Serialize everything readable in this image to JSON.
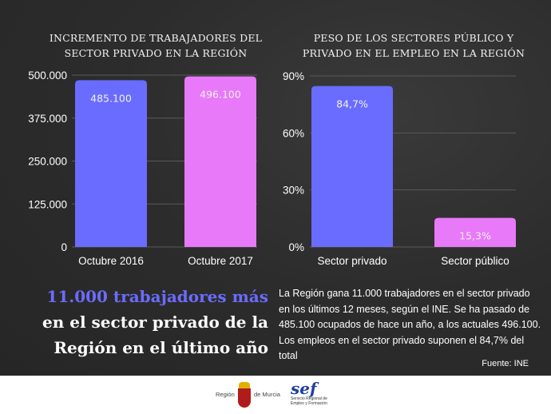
{
  "chart_data": [
    {
      "type": "bar",
      "title": "INCREMENTO DE TRABAJADORES DEL SECTOR PRIVADO EN LA REGIÓN",
      "categories": [
        "Octubre 2016",
        "Octubre 2017"
      ],
      "values": [
        485100,
        496100
      ],
      "data_labels": [
        "485.100",
        "496.100"
      ],
      "colors": [
        "#6a6cff",
        "#e879f9"
      ],
      "yticks": [
        "0",
        "125.000",
        "250.000",
        "375.000",
        "500.000"
      ],
      "ylim": [
        0,
        500000
      ],
      "grid": true
    },
    {
      "type": "bar",
      "title": "PESO DE LOS SECTORES PÚBLICO Y PRIVADO EN EL EMPLEO EN LA REGIÓN",
      "categories": [
        "Sector privado",
        "Sector público"
      ],
      "values": [
        84.7,
        15.3
      ],
      "data_labels": [
        "84,7%",
        "15,3%"
      ],
      "colors": [
        "#6a6cff",
        "#e879f9"
      ],
      "yticks": [
        "0%",
        "30%",
        "60%",
        "90%"
      ],
      "ylim": [
        0,
        90
      ],
      "grid": true
    }
  ],
  "headline": {
    "line1": "11.000 trabajadores más",
    "line2": "en el sector privado de la",
    "line3": "Región en el último año"
  },
  "paragraph": "La Región gana 11.000 trabajadores en el sector privado en los últimos 12 meses, según el INE. Se ha pasado de 485.100 ocupados de hace un año, a los actuales 496.100. Los empleos en el sector privado suponen el 84,7% del total",
  "source": "Fuente: INE",
  "footer": {
    "region_left": "Región",
    "region_right": "de Murcia",
    "sef_logo": "sef",
    "sef_text1": "Servicio Regional de",
    "sef_text2": "Empleo y Formación"
  }
}
